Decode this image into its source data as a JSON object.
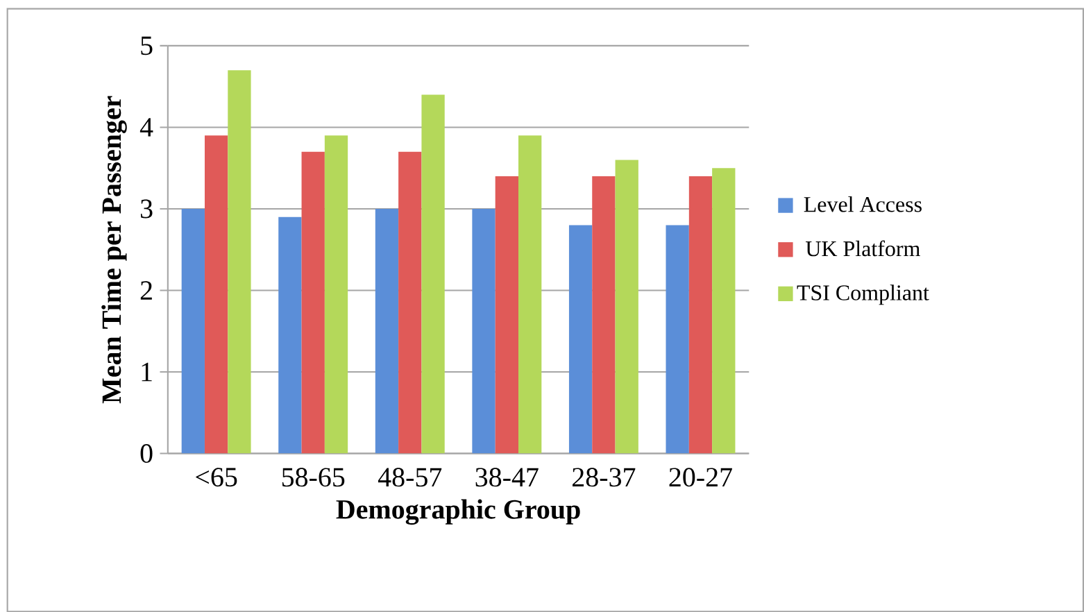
{
  "chart_data": {
    "type": "bar",
    "xlabel": "Demographic Group",
    "ylabel": "Mean Time per Passenger",
    "categories": [
      "<65",
      "58-65",
      "48-57",
      "38-47",
      "28-37",
      "20-27"
    ],
    "series": [
      {
        "name": "Level Access",
        "color": "#5b8ed8",
        "values": [
          3.0,
          2.9,
          3.0,
          3.0,
          2.8,
          2.8
        ]
      },
      {
        "name": "UK Platform",
        "color": "#e05a58",
        "values": [
          3.9,
          3.7,
          3.7,
          3.4,
          3.4,
          3.4
        ]
      },
      {
        "name": "TSI Compliant",
        "color": "#b4d85a",
        "values": [
          4.7,
          3.9,
          4.4,
          3.9,
          3.6,
          3.5
        ]
      }
    ],
    "ylim": [
      0,
      5
    ],
    "yticks": [
      0,
      1,
      2,
      3,
      4,
      5
    ],
    "grid": "y",
    "legend": "right"
  }
}
